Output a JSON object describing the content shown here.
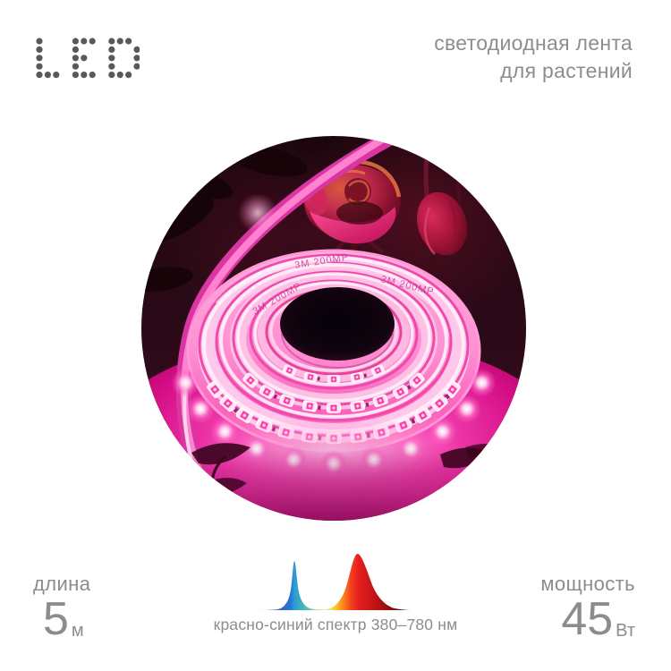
{
  "brand_logo": {
    "text": "LED"
  },
  "tagline": {
    "line1": "светодиодная лента",
    "line2": "для растений"
  },
  "photo": {
    "description": "спираль розовой светодиодной фитоленты светится на поверхности, на тёмном фоне красные розы",
    "strip_backing_text": "3M 200MP"
  },
  "specs": {
    "length_label": "длина",
    "length_value": "5",
    "length_unit": "м",
    "power_label": "мощность",
    "power_value": "45",
    "power_unit": "Вт"
  },
  "spectrum": {
    "caption": "красно-синий спектр 380–780 нм",
    "chart_data": {
      "type": "area",
      "title": "",
      "x_range_nm": [
        380,
        780
      ],
      "series": [
        {
          "name": "синий пик",
          "peak_nm": 450,
          "peak_relative_intensity": 0.88
        },
        {
          "name": "красный пик",
          "peak_nm": 660,
          "peak_relative_intensity": 1.0
        }
      ],
      "legend": false,
      "grid": false
    }
  },
  "colors": {
    "text_gray": "#8a8c8e",
    "logo_gray": "#58595b",
    "strip_pink": "#ff35a8",
    "surface_magenta": "#d60e88",
    "spectrum_blue": "#2e86d8",
    "spectrum_red": "#e51e1e"
  }
}
